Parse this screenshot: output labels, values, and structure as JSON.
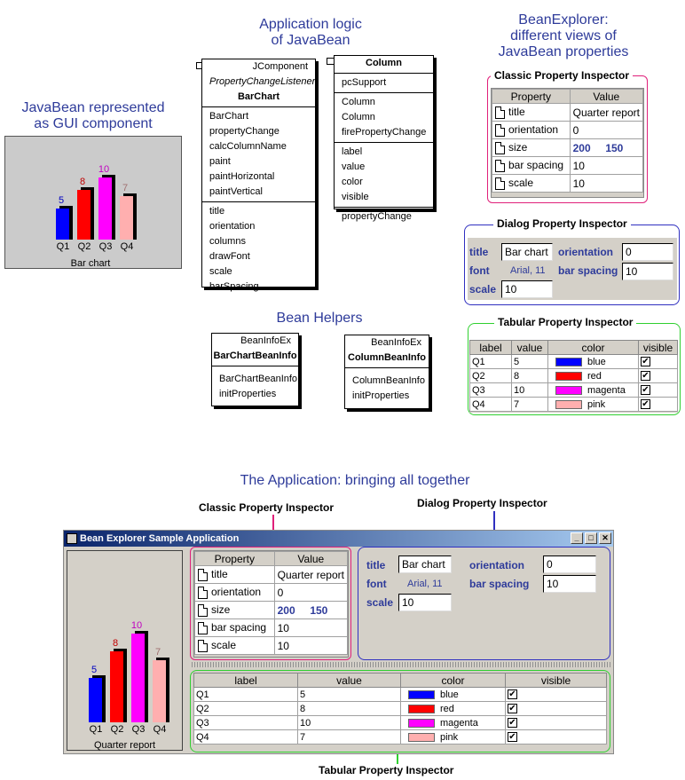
{
  "titles": {
    "gui": "JavaBean represented\nas GUI component",
    "logic": "Application logic\nof JavaBean",
    "explorer": "BeanExplorer:\ndifferent views of\nJavaBean properties",
    "helpers": "Bean Helpers",
    "app": "The Application: bringing all together"
  },
  "section_labels": {
    "classic": "Classic Property Inspector",
    "dialog": "Dialog Property Inspector",
    "tabular": "Tabular Property Inspector"
  },
  "barchart_class": {
    "super": "JComponent",
    "iface": "PropertyChangeListener",
    "name": "BarChart",
    "methods": [
      "BarChart",
      "propertyChange",
      "calcColumnName",
      "paint",
      "paintHorizontal",
      "paintVertical"
    ],
    "props": [
      "title",
      "orientation",
      "columns",
      "drawFont",
      "scale",
      "barSpacing"
    ]
  },
  "column_class": {
    "name": "Column",
    "fields": [
      "pcSupport"
    ],
    "methods": [
      "Column",
      "Column",
      "firePropertyChange"
    ],
    "props": [
      "label",
      "value",
      "color",
      "visible"
    ],
    "extra": [
      "propertyChange"
    ]
  },
  "bc_beaninfo": {
    "super": "BeanInfoEx",
    "name": "BarChartBeanInfo",
    "methods": [
      "BarChartBeanInfo",
      "initProperties"
    ]
  },
  "col_beaninfo": {
    "super": "BeanInfoEx",
    "name": "ColumnBeanInfo",
    "methods": [
      "ColumnBeanInfo",
      "initProperties"
    ]
  },
  "chart_data": {
    "type": "bar",
    "categories": [
      "Q1",
      "Q2",
      "Q3",
      "Q4"
    ],
    "values": [
      5,
      8,
      10,
      7
    ],
    "colors": [
      "#0000ff",
      "#ff0000",
      "#ff00ff",
      "#ffafaf"
    ],
    "value_label_colors": [
      "#0000c0",
      "#c00000",
      "#c000c0",
      "#a07070"
    ],
    "title": "Bar chart",
    "app_title": "Quarter report",
    "ylim": [
      0,
      10
    ]
  },
  "classic": {
    "headers": [
      "Property",
      "Value"
    ],
    "rows": [
      {
        "name": "title",
        "value": "Quarter report"
      },
      {
        "name": "orientation",
        "value": "0"
      },
      {
        "name": "size",
        "value": "200     150"
      },
      {
        "name": "bar spacing",
        "value": "10"
      },
      {
        "name": "scale",
        "value": "10"
      }
    ]
  },
  "dialog": {
    "title_label": "title",
    "title_value": "Bar chart",
    "orientation_label": "orientation",
    "orientation_value": "0",
    "font_label": "font",
    "font_value": "Arial, 11",
    "barspacing_label": "bar spacing",
    "barspacing_value": "10",
    "scale_label": "scale",
    "scale_value": "10"
  },
  "tabular": {
    "headers": [
      "label",
      "value",
      "color",
      "visible"
    ],
    "rows": [
      {
        "label": "Q1",
        "value": "5",
        "color": "blue",
        "hex": "#0000ff",
        "visible": "✔"
      },
      {
        "label": "Q2",
        "value": "8",
        "color": "red",
        "hex": "#ff0000",
        "visible": "✔"
      },
      {
        "label": "Q3",
        "value": "10",
        "color": "magenta",
        "hex": "#ff00ff",
        "visible": "✔"
      },
      {
        "label": "Q4",
        "value": "7",
        "color": "pink",
        "hex": "#ffafaf",
        "visible": "✔"
      }
    ]
  },
  "window": {
    "title": "Bean Explorer Sample Application",
    "min": "_",
    "max": "□",
    "close": "✕"
  },
  "frame_colors": {
    "classic": "#e0207a",
    "dialog": "#3030c0",
    "tabular": "#30d030"
  }
}
